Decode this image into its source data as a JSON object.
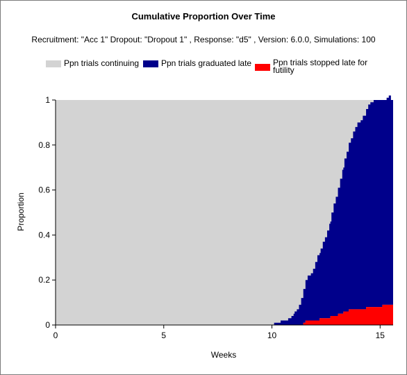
{
  "title": "Cumulative Proportion Over Time",
  "subtitle": "Recruitment: \"Acc 1\" Dropout: \"Dropout 1\" , Response: \"d5\" , Version: 6.0.0, Simulations: 100",
  "legend": [
    {
      "label": "Ppn trials continuing",
      "color": "#d3d3d3"
    },
    {
      "label": "Ppn trials graduated late",
      "color": "#00008b"
    },
    {
      "label": "Ppn trials stopped late for futility",
      "color": "#ff0000"
    }
  ],
  "chart_data": {
    "type": "area",
    "stacked": true,
    "title": "Cumulative Proportion Over Time",
    "xlabel": "Weeks",
    "ylabel": "Proportion",
    "xlim": [
      0,
      15.6
    ],
    "ylim": [
      0,
      1
    ],
    "x_ticks": [
      "0",
      "5",
      "10",
      "15"
    ],
    "y_ticks": [
      "0",
      "0.2",
      "0.4",
      "0.6",
      "0.8",
      "1"
    ],
    "grid": false,
    "legend_position": "top",
    "series": [
      {
        "name": "Ppn trials stopped late for futility",
        "color": "#ff0000",
        "points": [
          [
            11.45,
            0
          ],
          [
            11.45,
            0.01
          ],
          [
            11.55,
            0.02
          ],
          [
            12.2,
            0.03
          ],
          [
            12.7,
            0.04
          ],
          [
            13.05,
            0.05
          ],
          [
            13.3,
            0.06
          ],
          [
            13.55,
            0.07
          ],
          [
            14.35,
            0.08
          ],
          [
            15.1,
            0.09
          ],
          [
            15.6,
            0.09
          ]
        ]
      },
      {
        "name": "Ppn trials graduated late",
        "color": "#00008b",
        "points": [
          [
            10.05,
            0
          ],
          [
            10.1,
            0.01
          ],
          [
            10.4,
            0.02
          ],
          [
            10.75,
            0.03
          ],
          [
            10.9,
            0.04
          ],
          [
            11.0,
            0.05
          ],
          [
            11.05,
            0.06
          ],
          [
            11.15,
            0.07
          ],
          [
            11.25,
            0.09
          ],
          [
            11.35,
            0.12
          ],
          [
            11.45,
            0.15
          ],
          [
            11.55,
            0.18
          ],
          [
            11.65,
            0.2
          ],
          [
            11.8,
            0.21
          ],
          [
            11.9,
            0.23
          ],
          [
            12.0,
            0.26
          ],
          [
            12.1,
            0.29
          ],
          [
            12.25,
            0.31
          ],
          [
            12.35,
            0.34
          ],
          [
            12.45,
            0.36
          ],
          [
            12.55,
            0.39
          ],
          [
            12.65,
            0.42
          ],
          [
            12.75,
            0.46
          ],
          [
            12.85,
            0.5
          ],
          [
            12.95,
            0.53
          ],
          [
            13.05,
            0.56
          ],
          [
            13.15,
            0.6
          ],
          [
            13.25,
            0.64
          ],
          [
            13.35,
            0.68
          ],
          [
            13.45,
            0.71
          ],
          [
            13.55,
            0.74
          ],
          [
            13.65,
            0.76
          ],
          [
            13.75,
            0.79
          ],
          [
            13.85,
            0.81
          ],
          [
            13.95,
            0.83
          ],
          [
            14.1,
            0.84
          ],
          [
            14.2,
            0.86
          ],
          [
            14.35,
            0.88
          ],
          [
            14.45,
            0.9
          ],
          [
            14.55,
            0.91
          ],
          [
            14.7,
            0.92
          ],
          [
            14.8,
            0.92
          ],
          [
            14.9,
            0.92
          ],
          [
            15.0,
            0.92
          ],
          [
            15.1,
            0.91
          ],
          [
            15.3,
            0.92
          ],
          [
            15.4,
            0.93
          ],
          [
            15.5,
            0.91
          ],
          [
            15.6,
            0.91
          ]
        ]
      },
      {
        "name": "Ppn trials continuing",
        "color": "#d3d3d3",
        "points": [
          [
            0,
            1
          ],
          [
            10.05,
            1
          ],
          [
            10.4,
            0.98
          ],
          [
            10.9,
            0.96
          ],
          [
            11.45,
            0.84
          ],
          [
            12.0,
            0.71
          ],
          [
            12.55,
            0.58
          ],
          [
            13.05,
            0.39
          ],
          [
            13.55,
            0.19
          ],
          [
            14.0,
            0.12
          ],
          [
            14.5,
            0.05
          ],
          [
            15.0,
            0.02
          ],
          [
            15.5,
            0.0
          ],
          [
            15.6,
            0.0
          ]
        ]
      }
    ]
  }
}
